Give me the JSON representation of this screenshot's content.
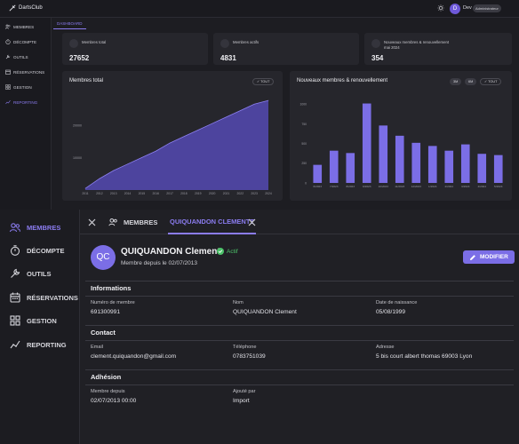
{
  "topbar": {
    "brand": "DartsClub",
    "user_initial": "D",
    "user_name": "Dev",
    "role": "Administrateur"
  },
  "top_nav": [
    {
      "label": "MEMBRES",
      "icon": "users-icon"
    },
    {
      "label": "DÉCOMPTE",
      "icon": "timer-icon"
    },
    {
      "label": "OUTILS",
      "icon": "tools-icon"
    },
    {
      "label": "RÉSERVATIONS",
      "icon": "calendar-icon"
    },
    {
      "label": "GESTION",
      "icon": "grid-icon"
    },
    {
      "label": "REPORTING",
      "icon": "reporting-icon"
    }
  ],
  "top_tab": "DASHBOARD",
  "stats": [
    {
      "label": "Membres total",
      "value": "27652"
    },
    {
      "label": "Membres actifs",
      "value": "4831"
    },
    {
      "label": "Nouveaux membres & renouvellement",
      "label2": "mai 2024",
      "value": "354"
    }
  ],
  "charts_meta": {
    "left_title": "Membres total",
    "left_filter": "TOUT",
    "right_title": "Nouveaux membres & renouvellement",
    "right_filters": [
      "3M",
      "6M"
    ],
    "right_filter_active": "TOUT"
  },
  "chart_data": [
    {
      "type": "area",
      "title": "Membres total",
      "x": [
        "2011",
        "2012",
        "2013",
        "2014",
        "2015",
        "2016",
        "2017",
        "2018",
        "2019",
        "2020",
        "2021",
        "2022",
        "2023",
        "2024"
      ],
      "values": [
        500,
        3500,
        6000,
        8000,
        10000,
        12000,
        14500,
        16500,
        18500,
        20500,
        22500,
        24500,
        26500,
        27652
      ],
      "yticks": [
        "20000",
        "10000"
      ],
      "ylim": [
        0,
        28500
      ],
      "color": "#5b4fc4"
    },
    {
      "type": "bar",
      "title": "Nouveaux membres & renouvellement",
      "categories": [
        "6/2023",
        "7/2023",
        "8/2023",
        "9/2023",
        "10/2023",
        "11/2023",
        "12/2023",
        "1/2024",
        "2/2024",
        "3/2024",
        "4/2024",
        "5/2024"
      ],
      "values": [
        230,
        410,
        380,
        1010,
        730,
        600,
        510,
        470,
        410,
        490,
        370,
        354
      ],
      "yticks": [
        "0",
        "250",
        "500",
        "750",
        "1000"
      ],
      "ylim": [
        0,
        1050
      ],
      "color": "#7b6ee6"
    }
  ],
  "nav": [
    {
      "label": "MEMBRES",
      "icon": "users-icon"
    },
    {
      "label": "DÉCOMPTE",
      "icon": "timer-icon"
    },
    {
      "label": "OUTILS",
      "icon": "tools-icon"
    },
    {
      "label": "RÉSERVATIONS",
      "icon": "calendar-icon"
    },
    {
      "label": "GESTION",
      "icon": "grid-icon"
    },
    {
      "label": "REPORTING",
      "icon": "reporting-icon"
    }
  ],
  "tabs": {
    "members": "MEMBRES",
    "current": "QUIQUANDON CLEMENTT"
  },
  "member": {
    "initials": "QC",
    "name": "QUIQUANDON Clement",
    "status": "Actif",
    "since": "Membre depuis le 02/07/2013",
    "modify_label": "MODIFIER"
  },
  "sections": {
    "informations": {
      "title": "Informations",
      "fields": [
        {
          "label": "Numéro de membre",
          "value": "691300991"
        },
        {
          "label": "Nom",
          "value": "QUIQUANDON Clement"
        },
        {
          "label": "Date de naissance",
          "value": "05/08/1999"
        }
      ]
    },
    "contact": {
      "title": "Contact",
      "fields": [
        {
          "label": "Email",
          "value": "clement.quiquandon@gmail.com"
        },
        {
          "label": "Téléphone",
          "value": "0783751039"
        },
        {
          "label": "Adresse",
          "value": "5 bis court albert thomas 69003 Lyon"
        }
      ]
    },
    "adhesion": {
      "title": "Adhésion",
      "fields": [
        {
          "label": "Membre depuis",
          "value": "02/07/2013 00:00"
        },
        {
          "label": "Ajouté par",
          "value": "Import"
        }
      ]
    }
  },
  "colors": {
    "accent": "#7b6ee6",
    "active_green": "#4cc26a"
  }
}
